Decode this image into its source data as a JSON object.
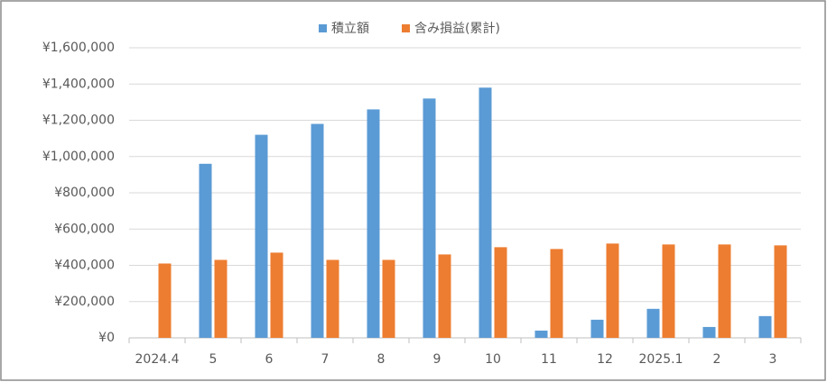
{
  "chart_data": {
    "type": "bar",
    "categories": [
      "2024.4",
      "5",
      "6",
      "7",
      "8",
      "9",
      "10",
      "11",
      "12",
      "2025.1",
      "2",
      "3"
    ],
    "series": [
      {
        "name": "積立額",
        "color": "#5b9bd5",
        "values": [
          0,
          960000,
          1120000,
          1180000,
          1260000,
          1320000,
          1380000,
          40000,
          100000,
          160000,
          60000,
          120000
        ]
      },
      {
        "name": "含み損益(累計)",
        "color": "#ed7d31",
        "values": [
          410000,
          430000,
          470000,
          430000,
          430000,
          460000,
          500000,
          490000,
          520000,
          515000,
          515000,
          510000
        ]
      }
    ],
    "ylim": [
      0,
      1600000
    ],
    "yticks": [
      {
        "value": 0,
        "label": "¥0"
      },
      {
        "value": 200000,
        "label": "¥200,000"
      },
      {
        "value": 400000,
        "label": "¥400,000"
      },
      {
        "value": 600000,
        "label": "¥600,000"
      },
      {
        "value": 800000,
        "label": "¥800,000"
      },
      {
        "value": 1000000,
        "label": "¥1,000,000"
      },
      {
        "value": 1200000,
        "label": "¥1,200,000"
      },
      {
        "value": 1400000,
        "label": "¥1,400,000"
      },
      {
        "value": 1600000,
        "label": "¥1,600,000"
      }
    ],
    "grid": true,
    "legend": "top"
  }
}
